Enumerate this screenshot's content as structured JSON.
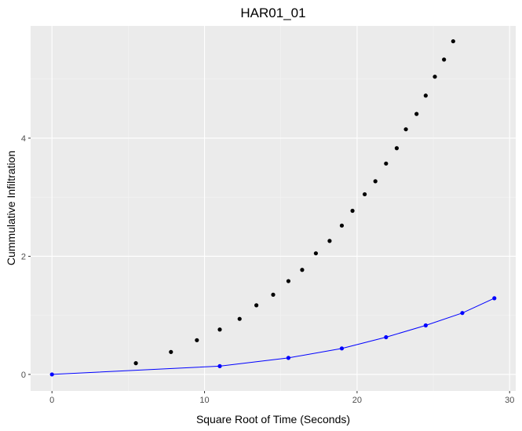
{
  "chart_data": {
    "type": "scatter",
    "title": "HAR01_01",
    "xlabel": "Square Root of Time (Seconds)",
    "ylabel": "Cummulative Infiltration",
    "xlim": [
      -1.4,
      30.4
    ],
    "ylim": [
      -0.28,
      5.9
    ],
    "x_ticks": [
      0,
      10,
      20,
      30
    ],
    "y_ticks": [
      0,
      2,
      4
    ],
    "grid": true,
    "legend": "none",
    "colors": {
      "panel": "#ebebeb",
      "grid_major": "#ffffff",
      "grid_minor": "#f4f4f4",
      "observed": "#000000",
      "model": "#0000ff"
    },
    "series": [
      {
        "points": [
          [
            5.5,
            0.19
          ],
          [
            7.8,
            0.38
          ],
          [
            9.5,
            0.58
          ],
          [
            11.0,
            0.76
          ],
          [
            12.3,
            0.94
          ],
          [
            13.4,
            1.17
          ],
          [
            14.5,
            1.35
          ],
          [
            15.5,
            1.58
          ],
          [
            16.4,
            1.77
          ],
          [
            17.3,
            2.05
          ],
          [
            18.2,
            2.26
          ],
          [
            19.0,
            2.52
          ],
          [
            19.7,
            2.77
          ],
          [
            20.5,
            3.05
          ],
          [
            21.2,
            3.27
          ],
          [
            21.9,
            3.57
          ],
          [
            22.6,
            3.83
          ],
          [
            23.2,
            4.15
          ],
          [
            23.9,
            4.41
          ],
          [
            24.5,
            4.72
          ],
          [
            25.1,
            5.04
          ],
          [
            25.7,
            5.33
          ],
          [
            26.3,
            5.64
          ]
        ]
      },
      {
        "line": true,
        "points": [
          [
            0.0,
            0.0
          ],
          [
            11.0,
            0.14
          ],
          [
            15.5,
            0.28
          ],
          [
            19.0,
            0.44
          ],
          [
            21.9,
            0.63
          ],
          [
            24.5,
            0.83
          ],
          [
            26.9,
            1.04
          ],
          [
            29.0,
            1.29
          ]
        ]
      }
    ]
  }
}
